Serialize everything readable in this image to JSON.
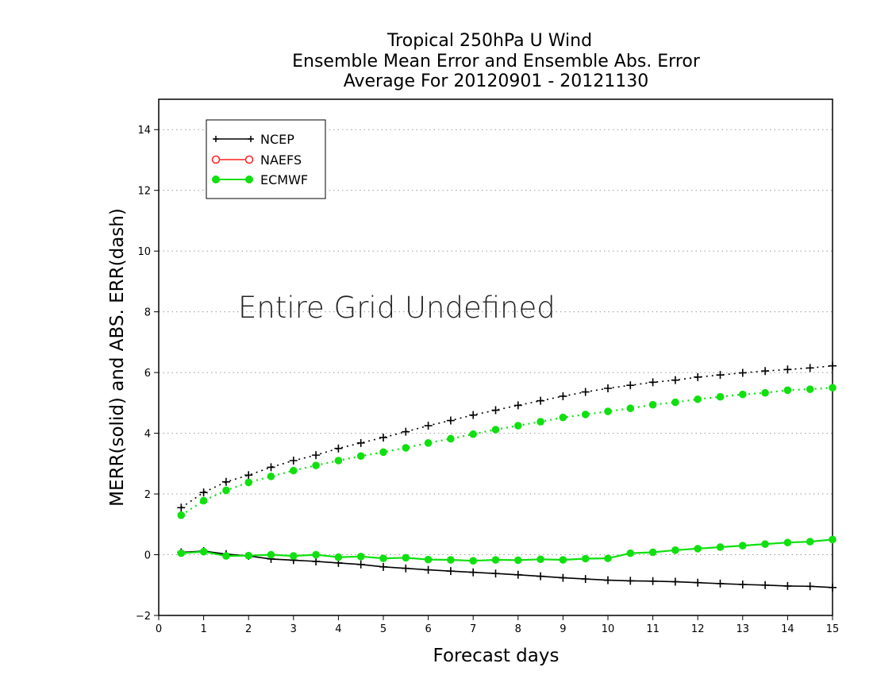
{
  "chart_data": {
    "type": "line",
    "title_lines": [
      "Tropical 250hPa U Wind",
      "Ensemble Mean Error and Ensemble Abs. Error",
      "Average For 20120901 - 20121130"
    ],
    "xlabel": "Forecast days",
    "ylabel": "MERR(solid) and ABS. ERR(dash)",
    "xlim": [
      0,
      15
    ],
    "ylim": [
      -2,
      15
    ],
    "x_ticks": [
      "0",
      "1",
      "2",
      "3",
      "4",
      "5",
      "6",
      "7",
      "8",
      "9",
      "10",
      "11",
      "12",
      "13",
      "14",
      "15"
    ],
    "y_ticks": [
      "−2",
      "0",
      "2",
      "4",
      "6",
      "8",
      "10",
      "12",
      "14"
    ],
    "grid": "horizontal dotted",
    "legend_position": "top-left",
    "annotation": "Entire Grid Undefined",
    "x": [
      0.5,
      1,
      1.5,
      2,
      2.5,
      3,
      3.5,
      4,
      4.5,
      5,
      5.5,
      6,
      6.5,
      7,
      7.5,
      8,
      8.5,
      9,
      9.5,
      10,
      10.5,
      11,
      11.5,
      12,
      12.5,
      13,
      13.5,
      14,
      14.5,
      15
    ],
    "series": [
      {
        "name": "NCEP",
        "color": "#000000",
        "marker": "plus",
        "merr": [
          0.08,
          0.12,
          0.02,
          -0.04,
          -0.14,
          -0.18,
          -0.22,
          -0.27,
          -0.32,
          -0.4,
          -0.45,
          -0.5,
          -0.54,
          -0.58,
          -0.62,
          -0.66,
          -0.71,
          -0.76,
          -0.8,
          -0.84,
          -0.86,
          -0.87,
          -0.89,
          -0.92,
          -0.95,
          -0.98,
          -1.0,
          -1.03,
          -1.04,
          -1.08
        ],
        "abs_err": [
          1.55,
          2.05,
          2.4,
          2.62,
          2.88,
          3.1,
          3.28,
          3.5,
          3.68,
          3.86,
          4.05,
          4.25,
          4.42,
          4.6,
          4.76,
          4.92,
          5.07,
          5.22,
          5.36,
          5.48,
          5.58,
          5.68,
          5.75,
          5.85,
          5.92,
          5.99,
          6.05,
          6.1,
          6.15,
          6.22
        ]
      },
      {
        "name": "NAEFS",
        "color": "#ff2020",
        "marker": "open-circle",
        "merr": [],
        "abs_err": []
      },
      {
        "name": "ECMWF",
        "color": "#10e010",
        "marker": "filled-circle",
        "merr": [
          0.05,
          0.1,
          -0.04,
          -0.03,
          0.0,
          -0.04,
          0.0,
          -0.08,
          -0.06,
          -0.12,
          -0.1,
          -0.16,
          -0.17,
          -0.2,
          -0.17,
          -0.18,
          -0.15,
          -0.17,
          -0.13,
          -0.12,
          0.05,
          0.08,
          0.15,
          0.2,
          0.25,
          0.3,
          0.35,
          0.4,
          0.43,
          0.5
        ],
        "abs_err": [
          1.3,
          1.78,
          2.12,
          2.38,
          2.58,
          2.77,
          2.94,
          3.1,
          3.25,
          3.38,
          3.52,
          3.68,
          3.82,
          3.97,
          4.12,
          4.25,
          4.38,
          4.52,
          4.62,
          4.72,
          4.82,
          4.94,
          5.02,
          5.12,
          5.2,
          5.28,
          5.33,
          5.42,
          5.45,
          5.5
        ]
      }
    ]
  }
}
